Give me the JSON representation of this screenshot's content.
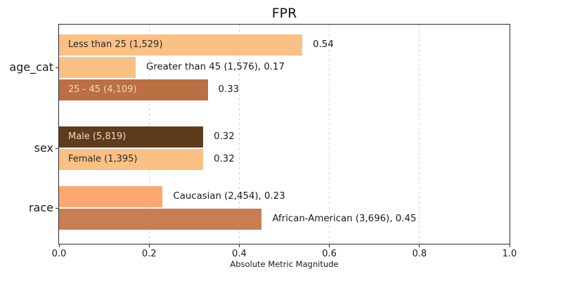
{
  "chart_data": {
    "type": "bar",
    "orientation": "horizontal",
    "title": "FPR",
    "xlabel": "Absolute Metric Magnitude",
    "xlim": [
      0.0,
      1.0
    ],
    "xticks": [
      0.0,
      0.2,
      0.4,
      0.6,
      0.8,
      1.0
    ],
    "xtick_labels": [
      "0.0",
      "0.2",
      "0.4",
      "0.6",
      "0.8",
      "1.0"
    ],
    "gridlines": [
      0.2,
      0.4,
      0.6,
      0.8
    ],
    "grid_style": "dashed",
    "legend": "none",
    "groups": [
      {
        "label": "age_cat",
        "bars": [
          {
            "name": "Less than 25",
            "count": "1,529",
            "value": 0.54,
            "bar_label": "Less than 25 (1,529)",
            "value_label": "0.54",
            "label_position": "inside",
            "color": "#fbc083",
            "text_color": "#2b2b2b"
          },
          {
            "name": "Greater than 45",
            "count": "1,576",
            "value": 0.17,
            "bar_label": "Greater than 45 (1,576), 0.17",
            "value_label": "",
            "label_position": "outside",
            "color": "#fbc083",
            "text_color": "#1a1a1a"
          },
          {
            "name": "25 - 45",
            "count": "4,109",
            "value": 0.33,
            "bar_label": "25 - 45 (4,109)",
            "value_label": "0.33",
            "label_position": "inside",
            "color": "#bb6f42",
            "text_color": "#eedabc"
          }
        ]
      },
      {
        "label": "sex",
        "bars": [
          {
            "name": "Male",
            "count": "5,819",
            "value": 0.32,
            "bar_label": "Male (5,819)",
            "value_label": "0.32",
            "label_position": "inside",
            "color": "#5e3b1d",
            "text_color": "#eedabc"
          },
          {
            "name": "Female",
            "count": "1,395",
            "value": 0.32,
            "bar_label": "Female (1,395)",
            "value_label": "0.32",
            "label_position": "inside",
            "color": "#fbc083",
            "text_color": "#2b2b2b"
          }
        ]
      },
      {
        "label": "race",
        "bars": [
          {
            "name": "Caucasian",
            "count": "2,454",
            "value": 0.23,
            "bar_label": "Caucasian (2,454), 0.23",
            "value_label": "",
            "label_position": "outside",
            "color": "#fba76f",
            "text_color": "#1a1a1a"
          },
          {
            "name": "African-American",
            "count": "3,696",
            "value": 0.45,
            "bar_label": "African-American (3,696), 0.45",
            "value_label": "",
            "label_position": "outside",
            "color": "#c87e52",
            "text_color": "#1a1a1a"
          }
        ]
      }
    ],
    "colors": {
      "light_orange": "#fbc083",
      "medium_orange": "#fba76f",
      "sienna": "#bb6f42",
      "terracotta": "#c87e52",
      "dark_brown": "#5e3b1d",
      "grid": "#cfcfcf",
      "spine": "#2b2b2b"
    }
  }
}
